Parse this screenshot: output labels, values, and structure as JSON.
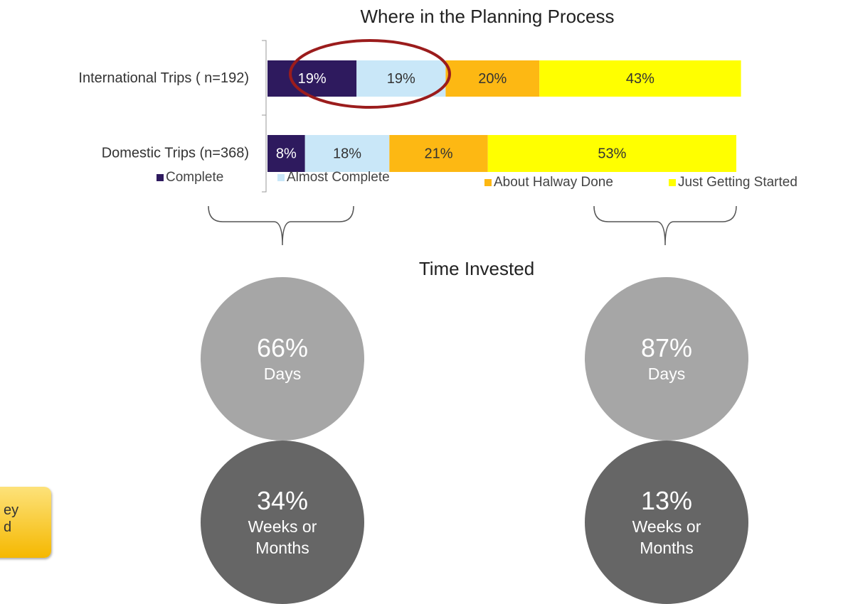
{
  "chart_data": {
    "type": "stacked_barh",
    "title": "Where in the Planning Process",
    "categories": [
      "International Trips ( n=192)",
      "Domestic Trips (n=368)"
    ],
    "xlim": [
      0,
      100
    ],
    "series": [
      {
        "name": "Complete",
        "color": "#2e1a5e",
        "values": [
          19,
          8
        ],
        "value_labels": [
          "19%",
          "8%"
        ]
      },
      {
        "name": "Almost Complete",
        "color": "#c9e7f8",
        "values": [
          19,
          18
        ],
        "value_labels": [
          "19%",
          "18%"
        ]
      },
      {
        "name": "About Halway Done",
        "color": "#fdb813",
        "values": [
          20,
          21
        ],
        "value_labels": [
          "20%",
          "21%"
        ]
      },
      {
        "name": "Just Getting Started",
        "color": "#ffff00",
        "values": [
          43,
          53
        ],
        "value_labels": [
          "43%",
          "53%"
        ]
      }
    ]
  },
  "time_invested": {
    "title": "Time Invested",
    "groups": [
      [
        {
          "value": 66,
          "label": "66%",
          "text": "Days"
        },
        {
          "value": 34,
          "label": "34%",
          "text": "Weeks or Months"
        }
      ],
      [
        {
          "value": 87,
          "label": "87%",
          "text": "Days"
        },
        {
          "value": 13,
          "label": "13%",
          "text": "Weeks or Months"
        }
      ]
    ]
  },
  "side_note": {
    "lines": [
      "ey",
      "d"
    ]
  }
}
